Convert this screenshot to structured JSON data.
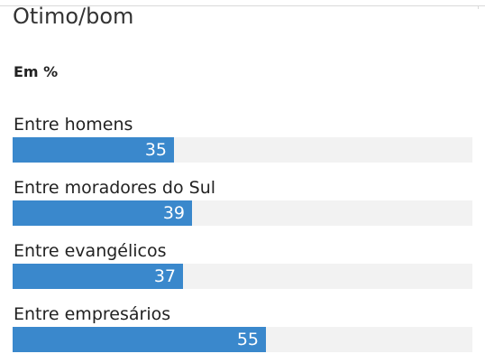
{
  "chart_data": {
    "type": "bar",
    "orientation": "horizontal",
    "title": "Otimo/bom",
    "subtitle": "Em %",
    "categories": [
      "Entre homens",
      "Entre moradores do Sul",
      "Entre evangélicos",
      "Entre empresários"
    ],
    "values": [
      35,
      39,
      37,
      55
    ],
    "value_labels": [
      "35",
      "39",
      "37",
      "55"
    ],
    "xlim": [
      0,
      100
    ],
    "grid": false,
    "bar_color": "#3a88cc",
    "track_color": "#f2f2f2"
  }
}
